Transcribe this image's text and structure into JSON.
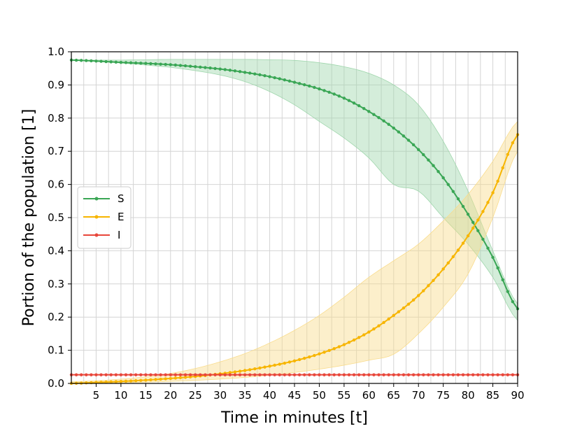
{
  "chart_data": {
    "type": "line",
    "xlabel": "Time in minutes [t]",
    "ylabel": "Portion of the population [1]",
    "xlim": [
      0,
      90
    ],
    "ylim": [
      0.0,
      1.0
    ],
    "x_ticks": [
      5,
      10,
      15,
      20,
      25,
      30,
      35,
      40,
      45,
      50,
      55,
      60,
      65,
      70,
      75,
      80,
      85,
      90
    ],
    "y_ticks": [
      0.0,
      0.1,
      0.2,
      0.3,
      0.4,
      0.5,
      0.6,
      0.7,
      0.8,
      0.9,
      1.0
    ],
    "y_tick_labels": [
      "0.0",
      "0.1",
      "0.2",
      "0.3",
      "0.4",
      "0.5",
      "0.6",
      "0.7",
      "0.8",
      "0.9",
      "1.0"
    ],
    "grid": true,
    "legend_position": "center-left",
    "x": [
      0,
      5,
      10,
      15,
      20,
      25,
      30,
      35,
      40,
      45,
      50,
      55,
      60,
      65,
      70,
      75,
      80,
      85,
      90
    ],
    "series": [
      {
        "name": "S",
        "color": "#3aa655",
        "band_color": "#9fd6ac",
        "values": [
          0.975,
          0.972,
          0.968,
          0.965,
          0.961,
          0.955,
          0.948,
          0.938,
          0.925,
          0.908,
          0.888,
          0.86,
          0.82,
          0.77,
          0.705,
          0.62,
          0.51,
          0.38,
          0.225
        ],
        "band_low": [
          0.975,
          0.971,
          0.966,
          0.96,
          0.953,
          0.943,
          0.93,
          0.91,
          0.88,
          0.84,
          0.79,
          0.74,
          0.68,
          0.6,
          0.58,
          0.5,
          0.42,
          0.32,
          0.19
        ],
        "band_high": [
          0.975,
          0.975,
          0.975,
          0.976,
          0.977,
          0.977,
          0.977,
          0.977,
          0.976,
          0.974,
          0.967,
          0.955,
          0.935,
          0.9,
          0.84,
          0.73,
          0.58,
          0.4,
          0.24
        ]
      },
      {
        "name": "E",
        "color": "#f7b500",
        "band_color": "#f9dc8c",
        "values": [
          0.0,
          0.003,
          0.006,
          0.01,
          0.015,
          0.021,
          0.029,
          0.039,
          0.052,
          0.068,
          0.089,
          0.117,
          0.155,
          0.205,
          0.265,
          0.345,
          0.445,
          0.575,
          0.75
        ],
        "band_low": [
          0.0,
          0.001,
          0.002,
          0.004,
          0.006,
          0.009,
          0.013,
          0.018,
          0.025,
          0.033,
          0.043,
          0.055,
          0.07,
          0.088,
          0.15,
          0.23,
          0.33,
          0.5,
          0.7
        ],
        "band_high": [
          0.005,
          0.008,
          0.013,
          0.02,
          0.03,
          0.045,
          0.065,
          0.09,
          0.122,
          0.16,
          0.205,
          0.26,
          0.32,
          0.37,
          0.42,
          0.49,
          0.57,
          0.67,
          0.79
        ]
      },
      {
        "name": "I",
        "color": "#e8463a",
        "values": [
          0.026,
          0.026,
          0.026,
          0.026,
          0.026,
          0.026,
          0.026,
          0.026,
          0.026,
          0.026,
          0.026,
          0.026,
          0.026,
          0.026,
          0.026,
          0.026,
          0.026,
          0.026,
          0.026
        ]
      }
    ]
  }
}
